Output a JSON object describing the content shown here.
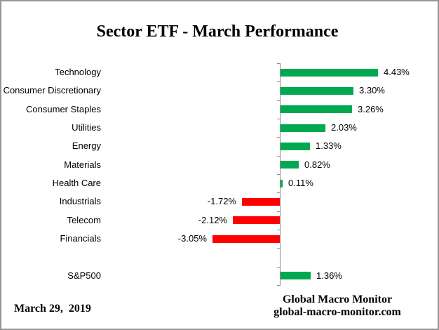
{
  "chart_data": {
    "type": "bar",
    "orientation": "horizontal",
    "title": "Sector ETF - March Performance",
    "rows": [
      {
        "category": "Technology",
        "value": 4.43,
        "label": "4.43%"
      },
      {
        "category": "Consumer Discretionary",
        "value": 3.3,
        "label": "3.30%"
      },
      {
        "category": "Consumer Staples",
        "value": 3.26,
        "label": "3.26%"
      },
      {
        "category": "Utilities",
        "value": 2.03,
        "label": "2.03%"
      },
      {
        "category": "Energy",
        "value": 1.33,
        "label": "1.33%"
      },
      {
        "category": "Materials",
        "value": 0.82,
        "label": "0.82%"
      },
      {
        "category": "Health Care",
        "value": 0.11,
        "label": "0.11%"
      },
      {
        "category": "Industrials",
        "value": -1.72,
        "label": "-1.72%"
      },
      {
        "category": "Telecom",
        "value": -2.12,
        "label": "-2.12%"
      },
      {
        "category": "Financials",
        "value": -3.05,
        "label": "-3.05%"
      },
      {
        "category": "",
        "value": null,
        "label": "",
        "spacer": true
      },
      {
        "category": "S&P500",
        "value": 1.36,
        "label": "1.36%"
      }
    ],
    "positive_color": "#00A950",
    "negative_color": "#FF0000",
    "axis_color": "#8E8E8E",
    "value_format": "percent",
    "xlim_implied": [
      -3.5,
      5.5
    ],
    "gridlines": false,
    "legend": false
  },
  "footer": {
    "date": "March 29,  2019",
    "brand_line1": "Global Macro Monitor",
    "brand_line2": "global-macro-monitor.com"
  }
}
